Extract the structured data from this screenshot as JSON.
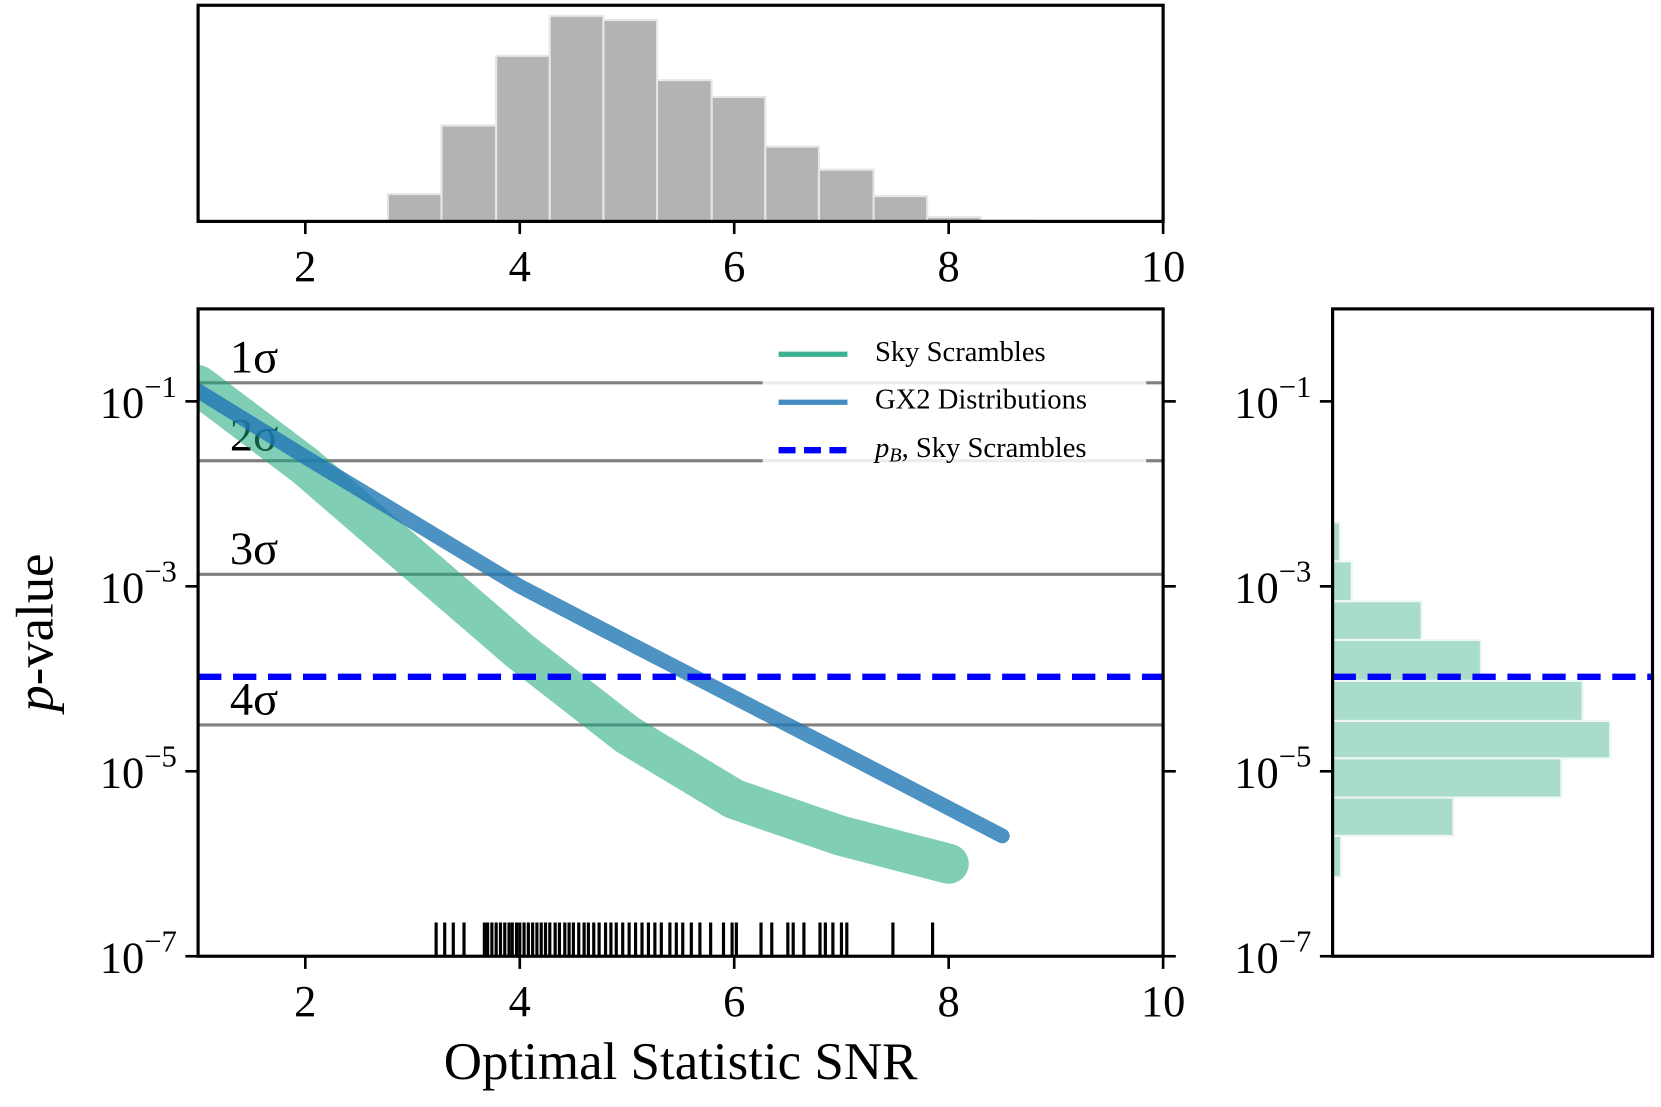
{
  "chart_data": [
    {
      "type": "histogram",
      "bins": [
        2.77,
        3.27,
        3.78,
        4.28,
        4.78,
        5.28,
        5.79,
        6.29,
        6.79,
        7.3,
        7.8,
        8.3,
        8.8
      ],
      "values": [
        26,
        91,
        157,
        195,
        191,
        134,
        118,
        71,
        49,
        24,
        4,
        1
      ],
      "color": "#b3b3b3",
      "xlim": [
        1,
        10
      ],
      "xticks": [
        2,
        4,
        6,
        8,
        10
      ],
      "ylim": [
        0,
        205
      ]
    },
    {
      "type": "line",
      "xlabel": "Optimal Statistic SNR",
      "ylabel": "p-value",
      "xlim": [
        1,
        10
      ],
      "xticks": [
        2,
        4,
        6,
        8,
        10
      ],
      "ylim": [
        1e-07,
        1
      ],
      "yscale": "log",
      "yticks": [
        {
          "value": 0.1,
          "label": "10−1"
        },
        {
          "value": 0.001,
          "label": "10−3"
        },
        {
          "value": 1e-05,
          "label": "10−5"
        },
        {
          "value": 1e-07,
          "label": "10−7"
        }
      ],
      "series": [
        {
          "name": "Sky Scrambles",
          "color": "#1aa67c",
          "x": [
            1,
            2,
            3,
            4,
            5,
            6,
            7,
            8
          ],
          "values": [
            0.15,
            0.02,
            0.002,
            0.0002,
            2.5e-05,
            5e-06,
            2e-06,
            1e-06
          ]
        },
        {
          "name": "GX2 Distributions",
          "color": "#1f77b4",
          "x": [
            1,
            2,
            3,
            4,
            5,
            6,
            7,
            8,
            8.5
          ],
          "values": [
            0.13,
            0.025,
            0.005,
            0.001,
            0.00025,
            6.3e-05,
            1.6e-05,
            4e-06,
            2e-06
          ]
        }
      ],
      "hlines": [
        {
          "label": "1σ",
          "value": 0.1587
        },
        {
          "label": "2σ",
          "value": 0.0228
        },
        {
          "label": "3σ",
          "value": 0.00135
        },
        {
          "label": "4σ",
          "value": 3.17e-05
        }
      ],
      "hline_color": "#808080",
      "threshold": {
        "name": "pB, Sky Scrambles",
        "value": 0.000105,
        "color": "#0000ff"
      },
      "rug": [
        3.22,
        3.3,
        3.38,
        3.48,
        3.67,
        3.7,
        3.74,
        3.78,
        3.82,
        3.86,
        3.9,
        3.93,
        3.97,
        4.0,
        4.04,
        4.08,
        4.12,
        4.16,
        4.2,
        4.24,
        4.28,
        4.33,
        4.37,
        4.42,
        4.46,
        4.5,
        4.55,
        4.6,
        4.64,
        4.69,
        4.74,
        4.8,
        4.85,
        4.9,
        4.96,
        5.02,
        5.08,
        5.14,
        5.2,
        5.26,
        5.32,
        5.4,
        5.46,
        5.52,
        5.6,
        5.68,
        5.78,
        5.9,
        5.98,
        6.02,
        6.25,
        6.35,
        6.5,
        6.55,
        6.65,
        6.8,
        6.85,
        6.92,
        7.0,
        7.05,
        7.48,
        7.85
      ],
      "legend": "upper right"
    },
    {
      "type": "barh-histogram",
      "bins": [
        0.0049,
        0.00186,
        0.00069,
        0.000263,
        9.5e-05,
        3.5e-05,
        1.38e-05,
        5.2e-06,
        2e-06,
        7.2e-07
      ],
      "values": [
        7,
        18,
        84,
        140,
        236,
        262,
        216,
        114,
        8
      ],
      "color": "#a9dcc9",
      "xlim": [
        0,
        302
      ],
      "ylim": [
        1e-07,
        1
      ],
      "yscale": "log",
      "yticks": [
        {
          "value": 0.1,
          "label": "10−1"
        },
        {
          "value": 0.001,
          "label": "10−3"
        },
        {
          "value": 1e-05,
          "label": "10−5"
        },
        {
          "value": 1e-07,
          "label": "10−7"
        }
      ],
      "threshold": {
        "value": 0.000105,
        "color": "#0000ff"
      }
    }
  ]
}
